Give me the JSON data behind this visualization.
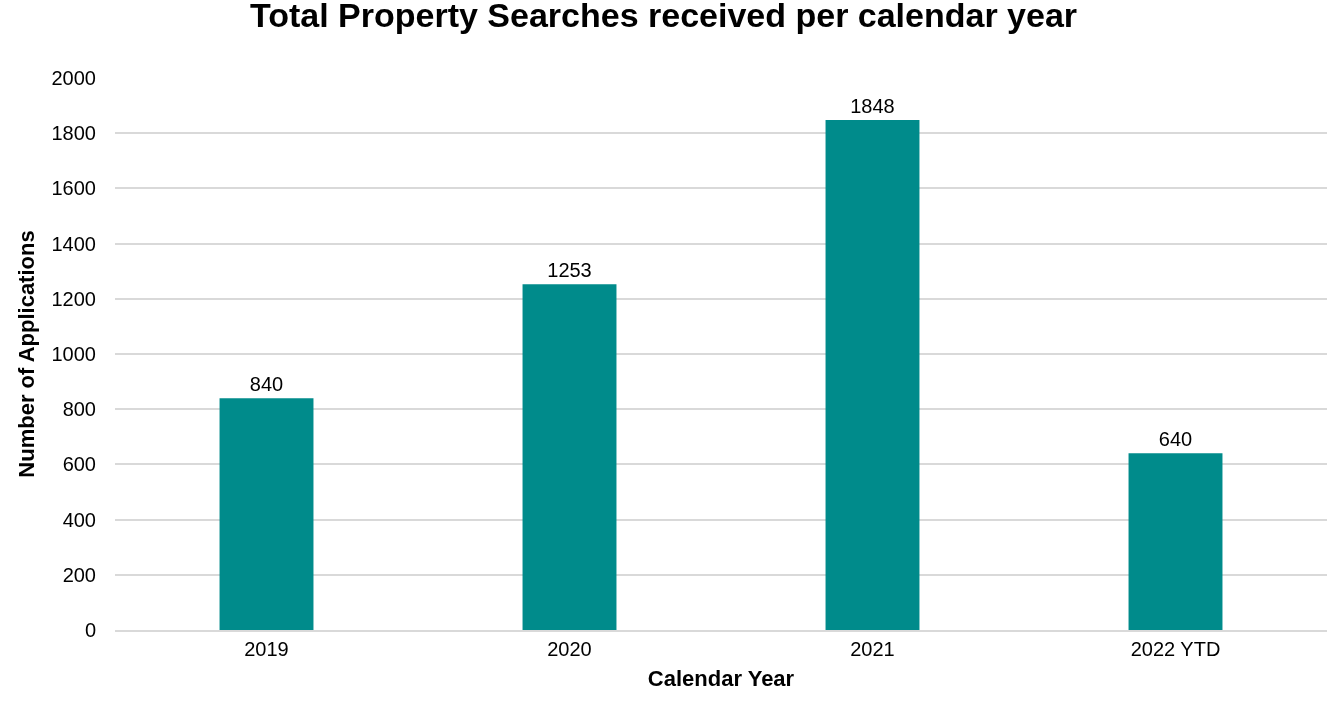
{
  "chart_data": {
    "type": "bar",
    "title": "Total Property Searches received per calendar year",
    "xlabel": "Calendar Year",
    "ylabel": "Number of Applications",
    "categories": [
      "2019",
      "2020",
      "2021",
      "2022 YTD"
    ],
    "values": [
      840,
      1253,
      1848,
      640
    ],
    "color": "#008b8b",
    "ylim": [
      0,
      2000
    ],
    "yticks": [
      0,
      200,
      400,
      600,
      800,
      1000,
      1200,
      1400,
      1600,
      1800,
      2000
    ],
    "grid": "y",
    "data_labels": true,
    "legend": false
  }
}
